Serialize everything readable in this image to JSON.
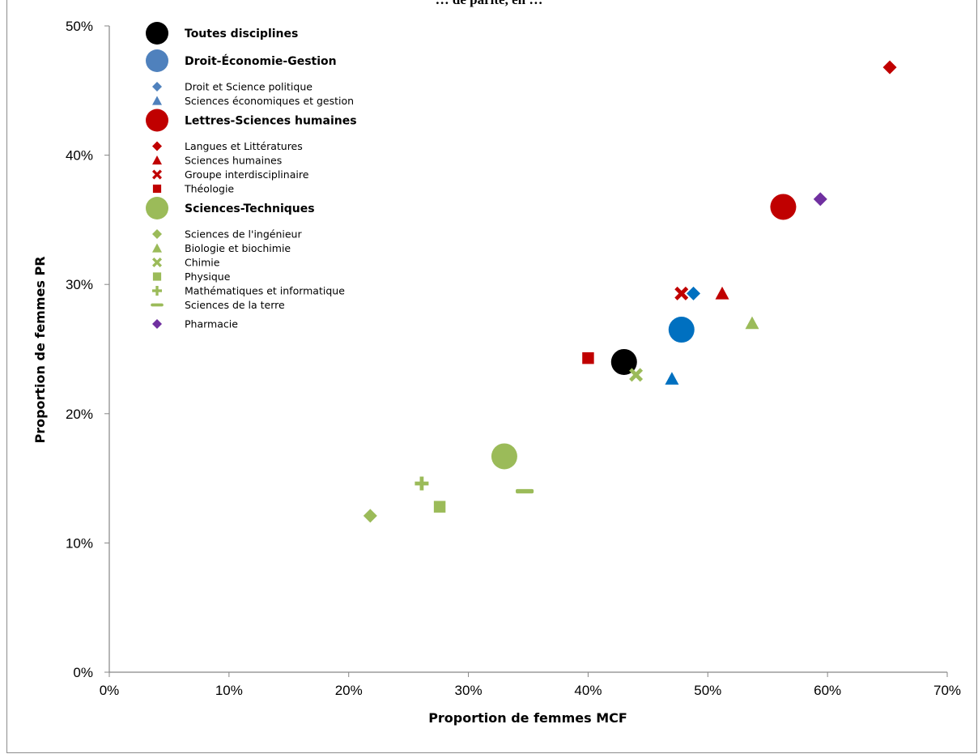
{
  "chart_data": {
    "type": "scatter",
    "title": "… de parité, en …",
    "xlabel": "Proportion de femmes MCF",
    "ylabel": "Proportion de femmes PR",
    "xlim": [
      0,
      70
    ],
    "ylim": [
      0,
      50
    ],
    "x_ticks": [
      "0%",
      "10%",
      "20%",
      "30%",
      "40%",
      "50%",
      "60%",
      "70%"
    ],
    "y_ticks": [
      "0%",
      "10%",
      "20%",
      "30%",
      "40%",
      "50%"
    ],
    "grid": false,
    "legend_position": "top-left",
    "colors": {
      "black": "#000000",
      "blue": "#0070c0",
      "blue_legend": "#4f81bd",
      "red": "#c00000",
      "green": "#9bbb59",
      "purple": "#7030a0"
    },
    "series": [
      {
        "name": "Toutes disciplines",
        "group": true,
        "marker": "circle",
        "color": "#000000",
        "legend_color": "#000000",
        "x": 43.0,
        "y": 24.0
      },
      {
        "name": "Droit-Économie-Gestion",
        "group": true,
        "marker": "circle",
        "color": "#0070c0",
        "legend_color": "#4f81bd",
        "x": 47.8,
        "y": 26.5
      },
      {
        "name": "Droit et Science politique",
        "marker": "diamond",
        "color": "#0070c0",
        "legend_color": "#4f81bd",
        "x": 48.8,
        "y": 29.3
      },
      {
        "name": "Sciences économiques et gestion",
        "marker": "triangle",
        "color": "#0070c0",
        "legend_color": "#4f81bd",
        "x": 47.0,
        "y": 22.7
      },
      {
        "name": "Lettres-Sciences humaines",
        "group": true,
        "marker": "circle",
        "color": "#c00000",
        "legend_color": "#c00000",
        "x": 56.3,
        "y": 36.0
      },
      {
        "name": "Langues et Littératures",
        "marker": "diamond",
        "color": "#c00000",
        "legend_color": "#c00000",
        "x": 65.2,
        "y": 46.8
      },
      {
        "name": "Sciences humaines",
        "marker": "triangle",
        "color": "#c00000",
        "legend_color": "#c00000",
        "x": 51.2,
        "y": 29.3
      },
      {
        "name": "Groupe interdisciplinaire",
        "marker": "x",
        "color": "#c00000",
        "legend_color": "#c00000",
        "x": 47.8,
        "y": 29.3
      },
      {
        "name": "Théologie",
        "marker": "square",
        "color": "#c00000",
        "legend_color": "#c00000",
        "x": 40.0,
        "y": 24.3
      },
      {
        "name": "Sciences-Techniques",
        "group": true,
        "marker": "circle",
        "color": "#9bbb59",
        "legend_color": "#9bbb59",
        "x": 33.0,
        "y": 16.7
      },
      {
        "name": "Sciences de l'ingénieur",
        "marker": "diamond",
        "color": "#9bbb59",
        "legend_color": "#9bbb59",
        "x": 21.8,
        "y": 12.1
      },
      {
        "name": "Biologie et biochimie",
        "marker": "triangle",
        "color": "#9bbb59",
        "legend_color": "#9bbb59",
        "x": 53.7,
        "y": 27.0
      },
      {
        "name": "Chimie",
        "marker": "x",
        "color": "#9bbb59",
        "legend_color": "#9bbb59",
        "x": 44.0,
        "y": 23.0
      },
      {
        "name": "Physique",
        "marker": "square",
        "color": "#9bbb59",
        "legend_color": "#9bbb59",
        "x": 27.6,
        "y": 12.8
      },
      {
        "name": "Mathématiques et informatique",
        "marker": "plus",
        "color": "#9bbb59",
        "legend_color": "#9bbb59",
        "x": 26.1,
        "y": 14.6
      },
      {
        "name": "Sciences de la terre",
        "marker": "dash",
        "color": "#9bbb59",
        "legend_color": "#9bbb59",
        "x": 34.7,
        "y": 14.0
      },
      {
        "name": "Pharmacie",
        "marker": "diamond",
        "color": "#7030a0",
        "legend_color": "#7030a0",
        "x": 59.4,
        "y": 36.6
      }
    ]
  }
}
